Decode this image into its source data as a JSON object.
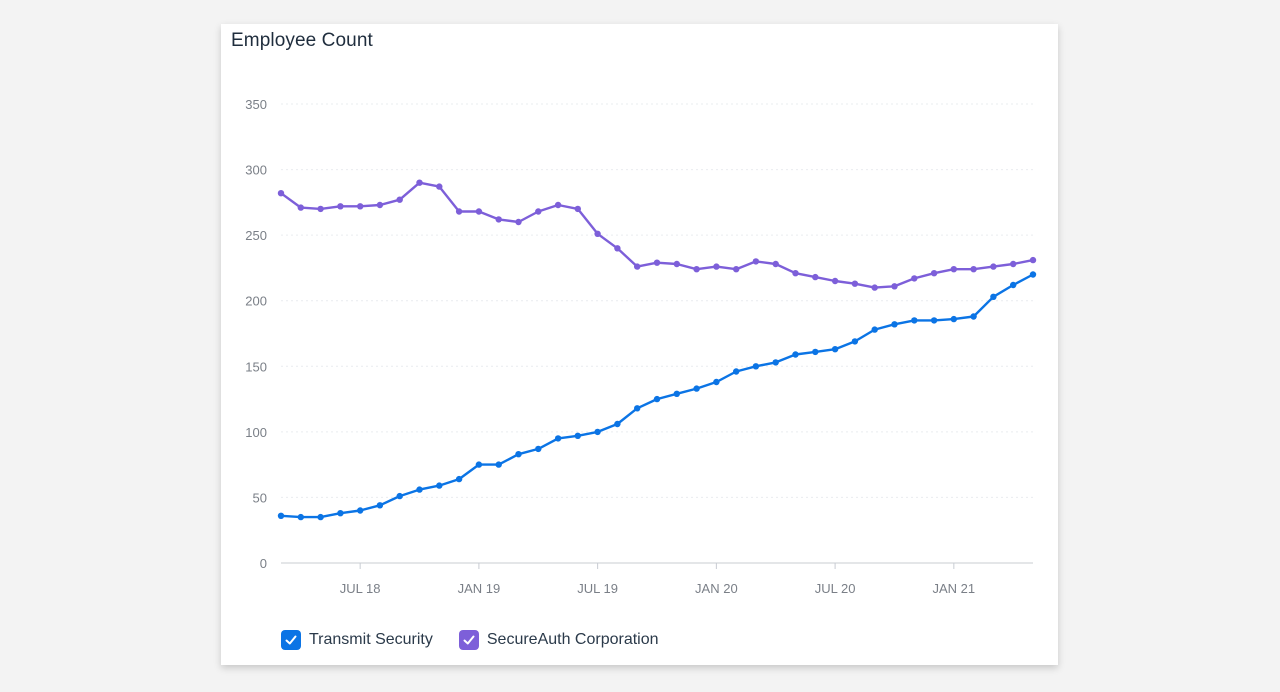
{
  "card": {
    "title": "Employee Count"
  },
  "colors": {
    "series_1": "#0b74e5",
    "series_2": "#7d5fd9",
    "grid": "#e9ecef",
    "axis": "#c8ccd2"
  },
  "legend": {
    "items": [
      {
        "label": "Transmit Security",
        "checked": true,
        "color": "#0b74e5",
        "icon": "check-icon"
      },
      {
        "label": "SecureAuth Corporation",
        "checked": true,
        "color": "#7d5fd9",
        "icon": "check-icon"
      }
    ]
  },
  "chart_data": {
    "type": "line",
    "title": "Employee Count",
    "xlabel": "",
    "ylabel": "",
    "ylim": [
      0,
      350
    ],
    "yticks": [
      0,
      50,
      100,
      150,
      200,
      250,
      300,
      350
    ],
    "xlim": [
      "2018-03",
      "2021-04"
    ],
    "xticks": [
      {
        "x": "2018-07",
        "label": "JUL 18"
      },
      {
        "x": "2019-01",
        "label": "JAN 19"
      },
      {
        "x": "2019-07",
        "label": "JUL 19"
      },
      {
        "x": "2020-01",
        "label": "JAN 20"
      },
      {
        "x": "2020-07",
        "label": "JUL 20"
      },
      {
        "x": "2021-01",
        "label": "JAN 21"
      }
    ],
    "grid": true,
    "legend_position": "bottom-left",
    "x": [
      "2018-03",
      "2018-04",
      "2018-05",
      "2018-06",
      "2018-07",
      "2018-08",
      "2018-09",
      "2018-10",
      "2018-11",
      "2018-12",
      "2019-01",
      "2019-02",
      "2019-03",
      "2019-04",
      "2019-05",
      "2019-06",
      "2019-07",
      "2019-08",
      "2019-09",
      "2019-10",
      "2019-11",
      "2019-12",
      "2020-01",
      "2020-02",
      "2020-03",
      "2020-04",
      "2020-05",
      "2020-06",
      "2020-07",
      "2020-08",
      "2020-09",
      "2020-10",
      "2020-11",
      "2020-12",
      "2021-01",
      "2021-02",
      "2021-03",
      "2021-04",
      "2021-05"
    ],
    "series": [
      {
        "name": "Transmit Security",
        "values": [
          36,
          35,
          35,
          38,
          40,
          44,
          51,
          56,
          59,
          64,
          75,
          75,
          83,
          87,
          95,
          97,
          100,
          106,
          118,
          125,
          129,
          133,
          138,
          146,
          150,
          153,
          159,
          161,
          163,
          169,
          178,
          182,
          185,
          185,
          186,
          188,
          203,
          212,
          220
        ]
      },
      {
        "name": "SecureAuth Corporation",
        "values": [
          282,
          271,
          270,
          272,
          272,
          273,
          277,
          290,
          287,
          268,
          268,
          262,
          260,
          268,
          273,
          270,
          251,
          240,
          226,
          229,
          228,
          224,
          226,
          224,
          230,
          228,
          221,
          218,
          215,
          213,
          210,
          211,
          217,
          221,
          224,
          224,
          226,
          228,
          231
        ]
      }
    ]
  }
}
